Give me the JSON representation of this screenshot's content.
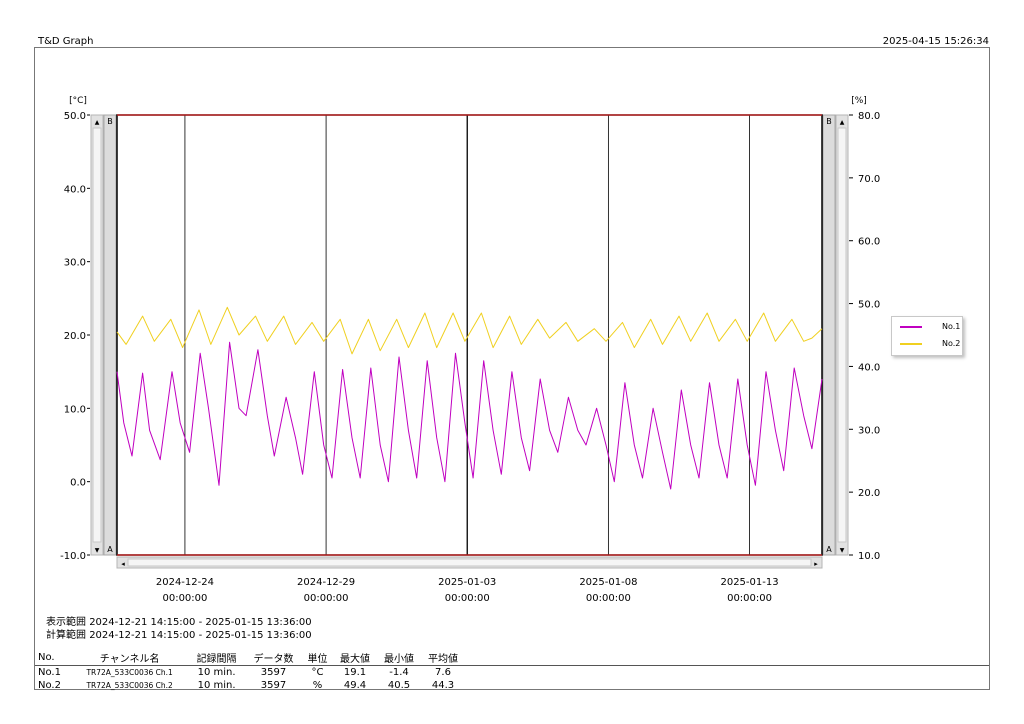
{
  "header": {
    "app_title": "T&D Graph",
    "print_timestamp": "2025-04-15 15:26:34"
  },
  "ranges": {
    "display_label": "表示範囲",
    "display_value": "2024-12-21 14:15:00 - 2025-01-15 13:36:00",
    "calc_label": "計算範囲",
    "calc_value": "2024-12-21 14:15:00 - 2025-01-15 13:36:00"
  },
  "scroll_labels": {
    "top": "B",
    "bottom": "A"
  },
  "stats_table": {
    "headers": [
      "No.",
      "チャンネル名",
      "記録間隔",
      "データ数",
      "単位",
      "最大値",
      "最小値",
      "平均値"
    ],
    "rows": [
      {
        "no": "No.1",
        "channel": "TR72A_533C0036 Ch.1",
        "interval": "10 min.",
        "count": "3597",
        "unit": "°C",
        "max": "19.1",
        "min": "-1.4",
        "avg": "7.6"
      },
      {
        "no": "No.2",
        "channel": "TR72A_533C0036 Ch.2",
        "interval": "10 min.",
        "count": "3597",
        "unit": "%",
        "max": "49.4",
        "min": "40.5",
        "avg": "44.3"
      }
    ]
  },
  "chart_data": {
    "type": "line",
    "x_start": "2024-12-21 14:15",
    "x_end": "2025-01-15 13:36",
    "x_ticks": [
      {
        "date": "2024-12-24",
        "time": "00:00:00"
      },
      {
        "date": "2024-12-29",
        "time": "00:00:00"
      },
      {
        "date": "2025-01-03",
        "time": "00:00:00"
      },
      {
        "date": "2025-01-08",
        "time": "00:00:00"
      },
      {
        "date": "2025-01-13",
        "time": "00:00:00"
      }
    ],
    "y_left": {
      "unit": "[°C]",
      "range": [
        -10,
        50
      ],
      "ticks": [
        "50.0",
        "40.0",
        "30.0",
        "20.0",
        "10.0",
        "0.0",
        "-10.0"
      ]
    },
    "y_right": {
      "unit": "[%]",
      "range": [
        10,
        80
      ],
      "ticks": [
        "80.0",
        "70.0",
        "60.0",
        "50.0",
        "40.0",
        "30.0",
        "20.0",
        "10.0"
      ]
    },
    "grid": "vertical at x ticks",
    "legend_position": "right",
    "series": [
      {
        "name": "No.1",
        "axis": "left",
        "color": "#c000c0",
        "points": [
          [
            "2024-12-21 14:15",
            15.0
          ],
          [
            "2024-12-21 20:00",
            8.0
          ],
          [
            "2024-12-22 03:00",
            3.5
          ],
          [
            "2024-12-22 12:00",
            14.8
          ],
          [
            "2024-12-22 18:00",
            7.0
          ],
          [
            "2024-12-23 03:00",
            3.0
          ],
          [
            "2024-12-23 13:00",
            15.0
          ],
          [
            "2024-12-23 20:00",
            8.0
          ],
          [
            "2024-12-24 04:00",
            4.0
          ],
          [
            "2024-12-24 13:00",
            17.5
          ],
          [
            "2024-12-24 20:00",
            10.0
          ],
          [
            "2024-12-25 05:00",
            -0.5
          ],
          [
            "2024-12-25 14:00",
            19.0
          ],
          [
            "2024-12-25 22:00",
            10.0
          ],
          [
            "2024-12-26 04:00",
            9.0
          ],
          [
            "2024-12-26 14:00",
            18.0
          ],
          [
            "2024-12-26 22:00",
            9.0
          ],
          [
            "2024-12-27 04:00",
            3.5
          ],
          [
            "2024-12-27 14:00",
            11.5
          ],
          [
            "2024-12-27 22:00",
            6.0
          ],
          [
            "2024-12-28 04:00",
            1.0
          ],
          [
            "2024-12-28 14:00",
            15.0
          ],
          [
            "2024-12-28 22:00",
            5.0
          ],
          [
            "2024-12-29 05:00",
            0.5
          ],
          [
            "2024-12-29 14:00",
            15.3
          ],
          [
            "2024-12-29 22:00",
            6.0
          ],
          [
            "2024-12-30 05:00",
            0.5
          ],
          [
            "2024-12-30 14:00",
            15.5
          ],
          [
            "2024-12-30 22:00",
            5.0
          ],
          [
            "2024-12-31 05:00",
            0.0
          ],
          [
            "2024-12-31 14:00",
            17.0
          ],
          [
            "2024-12-31 22:00",
            7.0
          ],
          [
            "2025-01-01 05:00",
            0.5
          ],
          [
            "2025-01-01 14:00",
            16.5
          ],
          [
            "2025-01-01 22:00",
            6.0
          ],
          [
            "2025-01-02 05:00",
            0.0
          ],
          [
            "2025-01-02 14:00",
            17.5
          ],
          [
            "2025-01-02 22:00",
            8.0
          ],
          [
            "2025-01-03 05:00",
            0.5
          ],
          [
            "2025-01-03 14:00",
            16.5
          ],
          [
            "2025-01-03 22:00",
            7.0
          ],
          [
            "2025-01-04 05:00",
            1.0
          ],
          [
            "2025-01-04 14:00",
            15.0
          ],
          [
            "2025-01-04 22:00",
            6.0
          ],
          [
            "2025-01-05 05:00",
            1.5
          ],
          [
            "2025-01-05 14:00",
            14.0
          ],
          [
            "2025-01-05 22:00",
            7.0
          ],
          [
            "2025-01-06 05:00",
            4.0
          ],
          [
            "2025-01-06 14:00",
            11.5
          ],
          [
            "2025-01-06 22:00",
            7.0
          ],
          [
            "2025-01-07 05:00",
            5.0
          ],
          [
            "2025-01-07 14:00",
            10.0
          ],
          [
            "2025-01-07 22:00",
            5.0
          ],
          [
            "2025-01-08 05:00",
            0.0
          ],
          [
            "2025-01-08 14:00",
            13.5
          ],
          [
            "2025-01-08 22:00",
            5.0
          ],
          [
            "2025-01-09 05:00",
            0.5
          ],
          [
            "2025-01-09 14:00",
            10.0
          ],
          [
            "2025-01-09 22:00",
            4.0
          ],
          [
            "2025-01-10 05:00",
            -1.0
          ],
          [
            "2025-01-10 14:00",
            12.5
          ],
          [
            "2025-01-10 22:00",
            5.0
          ],
          [
            "2025-01-11 05:00",
            0.5
          ],
          [
            "2025-01-11 14:00",
            13.5
          ],
          [
            "2025-01-11 22:00",
            5.0
          ],
          [
            "2025-01-12 05:00",
            0.5
          ],
          [
            "2025-01-12 14:00",
            14.0
          ],
          [
            "2025-01-12 22:00",
            5.0
          ],
          [
            "2025-01-13 05:00",
            -0.5
          ],
          [
            "2025-01-13 14:00",
            15.0
          ],
          [
            "2025-01-13 22:00",
            7.0
          ],
          [
            "2025-01-14 05:00",
            1.5
          ],
          [
            "2025-01-14 14:00",
            15.5
          ],
          [
            "2025-01-14 22:00",
            9.0
          ],
          [
            "2025-01-15 05:00",
            4.5
          ],
          [
            "2025-01-15 13:36",
            14.0
          ]
        ]
      },
      {
        "name": "No.2",
        "axis": "right",
        "color": "#f0d020",
        "points": [
          [
            "2024-12-21 14:15",
            45.5
          ],
          [
            "2024-12-21 22:00",
            43.5
          ],
          [
            "2024-12-22 12:00",
            48.0
          ],
          [
            "2024-12-22 22:00",
            44.0
          ],
          [
            "2024-12-23 12:00",
            47.5
          ],
          [
            "2024-12-23 22:00",
            43.0
          ],
          [
            "2024-12-24 12:00",
            49.0
          ],
          [
            "2024-12-24 22:00",
            43.5
          ],
          [
            "2024-12-25 12:00",
            49.4
          ],
          [
            "2024-12-25 22:00",
            45.0
          ],
          [
            "2024-12-26 12:00",
            48.0
          ],
          [
            "2024-12-26 22:00",
            44.0
          ],
          [
            "2024-12-27 12:00",
            48.0
          ],
          [
            "2024-12-27 22:00",
            43.5
          ],
          [
            "2024-12-28 12:00",
            47.0
          ],
          [
            "2024-12-28 22:00",
            44.0
          ],
          [
            "2024-12-29 12:00",
            47.5
          ],
          [
            "2024-12-29 22:00",
            42.0
          ],
          [
            "2024-12-30 12:00",
            47.5
          ],
          [
            "2024-12-30 22:00",
            42.5
          ],
          [
            "2024-12-31 12:00",
            47.5
          ],
          [
            "2024-12-31 22:00",
            43.0
          ],
          [
            "2025-01-01 12:00",
            48.5
          ],
          [
            "2025-01-01 22:00",
            43.0
          ],
          [
            "2025-01-02 12:00",
            48.5
          ],
          [
            "2025-01-02 22:00",
            44.0
          ],
          [
            "2025-01-03 12:00",
            48.5
          ],
          [
            "2025-01-03 22:00",
            43.0
          ],
          [
            "2025-01-04 12:00",
            48.0
          ],
          [
            "2025-01-04 22:00",
            43.5
          ],
          [
            "2025-01-05 12:00",
            47.5
          ],
          [
            "2025-01-05 22:00",
            44.5
          ],
          [
            "2025-01-06 12:00",
            47.0
          ],
          [
            "2025-01-06 22:00",
            44.0
          ],
          [
            "2025-01-07 12:00",
            46.0
          ],
          [
            "2025-01-07 22:00",
            44.0
          ],
          [
            "2025-01-08 12:00",
            47.0
          ],
          [
            "2025-01-08 22:00",
            43.0
          ],
          [
            "2025-01-09 12:00",
            47.5
          ],
          [
            "2025-01-09 22:00",
            43.5
          ],
          [
            "2025-01-10 12:00",
            48.0
          ],
          [
            "2025-01-10 22:00",
            44.0
          ],
          [
            "2025-01-11 12:00",
            48.5
          ],
          [
            "2025-01-11 22:00",
            44.0
          ],
          [
            "2025-01-12 12:00",
            47.5
          ],
          [
            "2025-01-12 22:00",
            44.0
          ],
          [
            "2025-01-13 12:00",
            48.5
          ],
          [
            "2025-01-13 22:00",
            44.0
          ],
          [
            "2025-01-14 12:00",
            47.5
          ],
          [
            "2025-01-14 22:00",
            44.0
          ],
          [
            "2025-01-15 05:00",
            44.5
          ],
          [
            "2025-01-15 13:36",
            46.0
          ]
        ]
      }
    ]
  }
}
